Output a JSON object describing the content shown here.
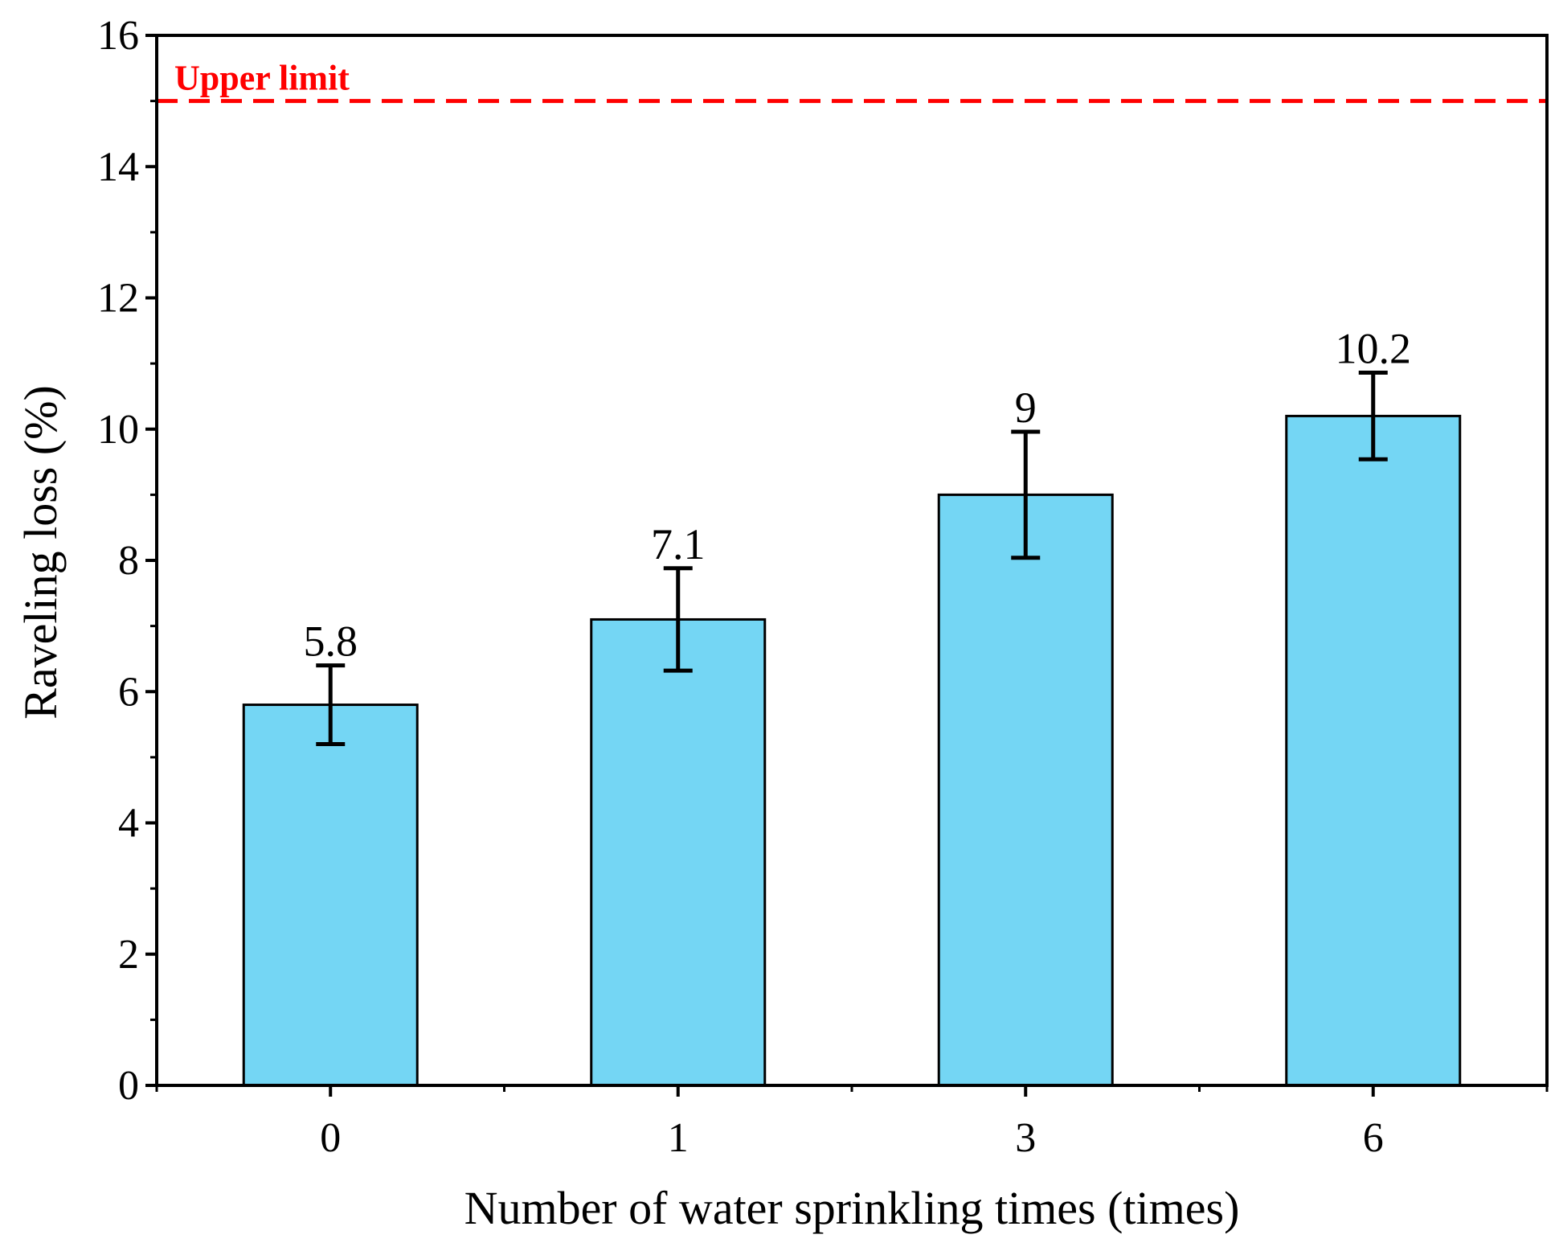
{
  "chart_data": {
    "type": "bar",
    "categories": [
      "0",
      "1",
      "3",
      "6"
    ],
    "values": [
      5.8,
      7.1,
      9.0,
      10.2
    ],
    "value_labels": [
      "5.8",
      "7.1",
      "9",
      "10.2"
    ],
    "errors": [
      0.6,
      0.78,
      0.96,
      0.66
    ],
    "xlabel": "Number of water sprinkling times (times)",
    "ylabel": "Raveling loss (%)",
    "ylim": [
      0,
      16
    ],
    "yticks": [
      0,
      2,
      4,
      6,
      8,
      10,
      12,
      14,
      16
    ],
    "grid": false,
    "reference_line": {
      "label": "Upper limit",
      "value": 15,
      "color": "#ff0000",
      "style": "dashed"
    },
    "colors": {
      "bar": "#74d6f4",
      "edge": "#000000"
    }
  }
}
